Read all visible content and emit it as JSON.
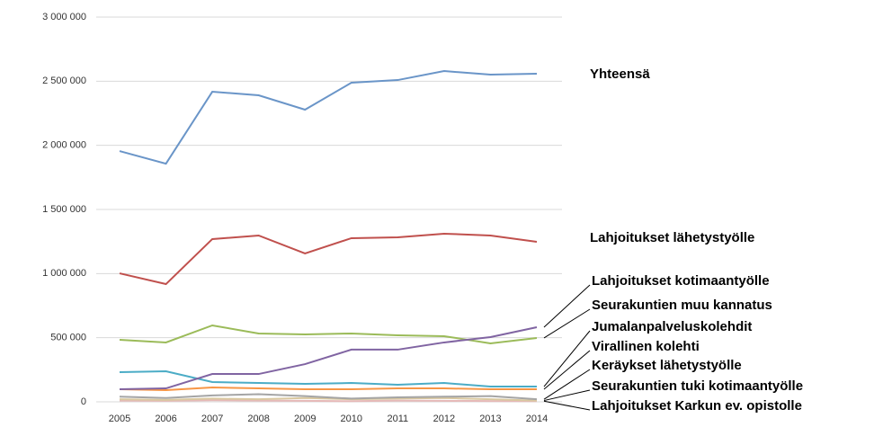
{
  "chart_data": {
    "type": "line",
    "categories": [
      "2005",
      "2006",
      "2007",
      "2008",
      "2009",
      "2010",
      "2011",
      "2012",
      "2013",
      "2014"
    ],
    "ylim": [
      0,
      3000000
    ],
    "yticks": [
      0,
      {
        "value": 500000,
        "label": "500 000"
      },
      {
        "value": 1000000,
        "label": "1 000 000"
      },
      {
        "value": 1500000,
        "label": "1 500 000"
      },
      {
        "value": 2000000,
        "label": "2 000 000"
      },
      {
        "value": 2500000,
        "label": "2 500 000"
      },
      {
        "value": 3000000,
        "label": "3 000 000"
      }
    ],
    "grid": true,
    "series": [
      {
        "name": "Yhteensä",
        "color": "#6a95c8",
        "values": [
          1955000,
          1857000,
          2418000,
          2390000,
          2278000,
          2488000,
          2509000,
          2579000,
          2551000,
          2558000
        ]
      },
      {
        "name": "Lahjoitukset lähetystyölle",
        "color": "#c0504d",
        "values": [
          1002000,
          918000,
          1269000,
          1297000,
          1157000,
          1276000,
          1283000,
          1311000,
          1297000,
          1248000
        ]
      },
      {
        "name": "Lahjoitukset kotimaantyölle",
        "color": "#8064a2",
        "values": [
          98000,
          105000,
          217000,
          217000,
          294000,
          407000,
          407000,
          463000,
          505000,
          582000
        ]
      },
      {
        "name": "Seurakuntien muu kannatus",
        "color": "#9bbb59",
        "values": [
          484000,
          463000,
          596000,
          533000,
          526000,
          533000,
          519000,
          512000,
          456000,
          498000
        ]
      },
      {
        "name": "Jumalanpalveluskolehdit",
        "color": "#4bacc6",
        "values": [
          231000,
          238000,
          154000,
          147000,
          140000,
          147000,
          133000,
          147000,
          119000,
          119000
        ]
      },
      {
        "name": "Virallinen kolehti",
        "color": "#f79646",
        "values": [
          98000,
          91000,
          112000,
          105000,
          98000,
          98000,
          105000,
          105000,
          98000,
          98000
        ]
      },
      {
        "name": "Keräykset lähetystyölle",
        "color": "#a5a5a5",
        "values": [
          40000,
          30000,
          50000,
          60000,
          45000,
          25000,
          35000,
          40000,
          45000,
          20000
        ]
      },
      {
        "name": "Seurakuntien tuki kotimaantyölle",
        "color": "#d9c8a0",
        "values": [
          20000,
          15000,
          25000,
          20000,
          30000,
          20000,
          25000,
          30000,
          20000,
          10000
        ]
      },
      {
        "name": "Lahjoitukset Karkun ev. opistolle",
        "color": "#e6b9b8",
        "values": [
          10000,
          8000,
          12000,
          10000,
          8000,
          5000,
          10000,
          8000,
          6000,
          5000
        ]
      }
    ]
  }
}
